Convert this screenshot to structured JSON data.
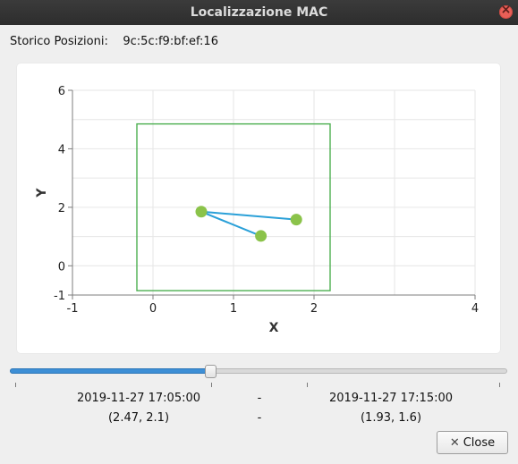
{
  "window": {
    "title": "Localizzazione MAC"
  },
  "header": {
    "label": "Storico Posizioni:",
    "mac": "9c:5c:f9:bf:ef:16"
  },
  "chart_data": {
    "type": "scatter",
    "title": "",
    "xlabel": "X",
    "ylabel": "Y",
    "xlim": [
      -1,
      4
    ],
    "ylim": [
      -1,
      6
    ],
    "xticks": [
      -1,
      0,
      1,
      2,
      4
    ],
    "yticks": [
      -1,
      0,
      2,
      4,
      6
    ],
    "grid": true,
    "rectangle": {
      "x0": -0.2,
      "y0": -0.85,
      "x1": 2.2,
      "y1": 4.85,
      "color": "#4caf50"
    },
    "points": [
      {
        "x": 0.6,
        "y": 1.85
      },
      {
        "x": 1.78,
        "y": 1.58
      },
      {
        "x": 1.34,
        "y": 1.02
      }
    ],
    "path": [
      {
        "x": 1.78,
        "y": 1.58
      },
      {
        "x": 0.6,
        "y": 1.85
      },
      {
        "x": 1.34,
        "y": 1.02
      }
    ],
    "line_color": "#2aa0d8",
    "point_color": "#8bc34a"
  },
  "slider": {
    "value_fraction": 0.402
  },
  "timeline": {
    "start_time": "2019-11-27 17:05:00",
    "separator1": "-",
    "end_time": "2019-11-27 17:15:00",
    "start_pos": "(2.47, 2.1)",
    "separator2": "-",
    "end_pos": "(1.93, 1.6)"
  },
  "buttons": {
    "close_label": "Close",
    "close_icon": "close-icon"
  }
}
